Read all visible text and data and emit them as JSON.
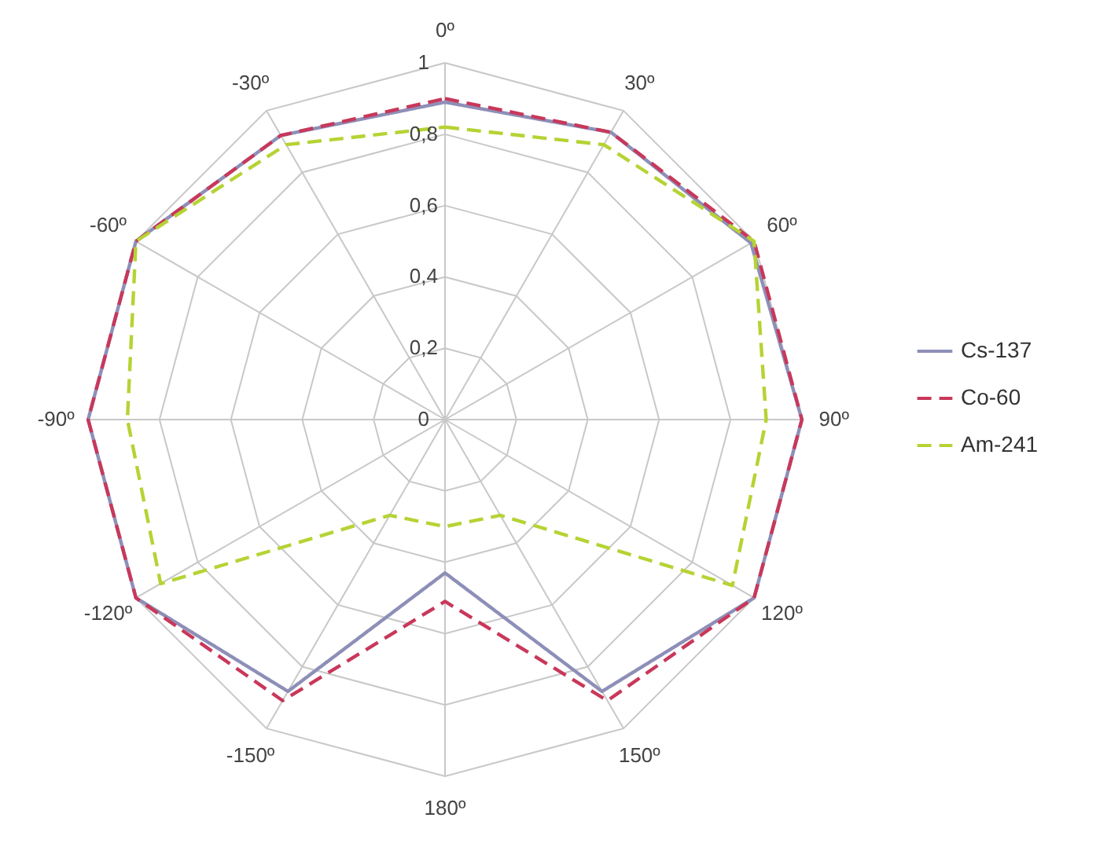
{
  "chart_data": {
    "type": "radar",
    "categories": [
      "0º",
      "30º",
      "60º",
      "90º",
      "120º",
      "150º",
      "180º",
      "-150º",
      "-120º",
      "-90º",
      "-60º",
      "-30º"
    ],
    "ylim": [
      0,
      1
    ],
    "yticks": [
      0,
      {
        "value": 0.2,
        "label": "0,2"
      },
      {
        "value": 0.4,
        "label": "0,4"
      },
      {
        "value": 0.6,
        "label": "0,6"
      },
      {
        "value": 0.8,
        "label": "0,8"
      },
      1
    ],
    "grid": true,
    "legend": "right",
    "series": [
      {
        "name": "Cs-137",
        "color": "#8e8fb8",
        "line_style": "solid",
        "values": [
          0.89,
          0.93,
          0.99,
          1.0,
          1.0,
          0.88,
          0.43,
          0.88,
          1.0,
          1.0,
          1.0,
          0.92
        ]
      },
      {
        "name": "Co-60",
        "color": "#c8385a",
        "line_style": "dashed",
        "values": [
          0.9,
          0.93,
          1.0,
          1.0,
          1.0,
          0.91,
          0.51,
          0.91,
          1.0,
          1.0,
          1.0,
          0.92
        ]
      },
      {
        "name": "Am-241",
        "color": "#b5d334",
        "line_style": "dashed",
        "values": [
          0.82,
          0.89,
          1.0,
          0.9,
          0.93,
          0.31,
          0.3,
          0.31,
          0.92,
          0.89,
          1.0,
          0.89
        ]
      }
    ]
  }
}
